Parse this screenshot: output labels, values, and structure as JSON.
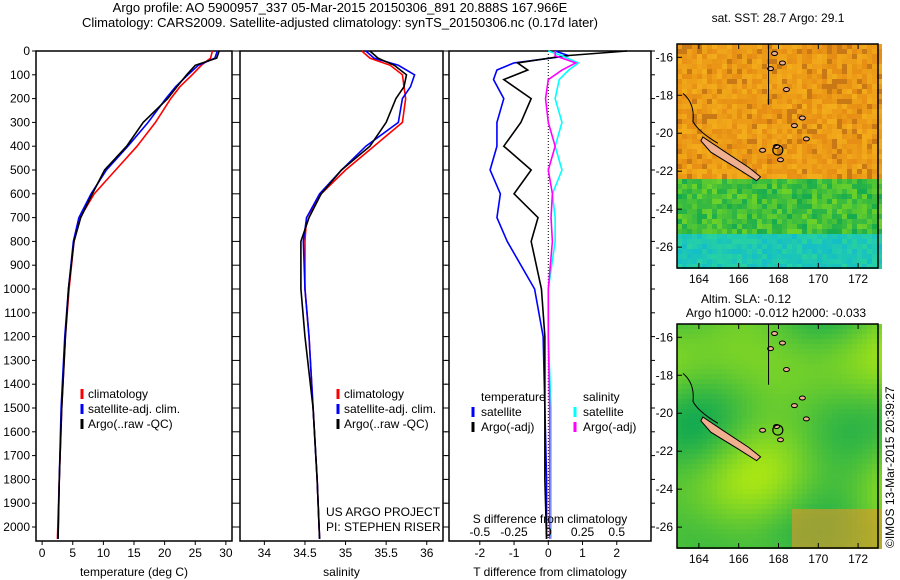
{
  "header": {
    "line1": "Argo profile: AO 5900957_337 05-Mar-2015 20150306_891 20.888S 167.966E",
    "line2": "Climatology: CARS2009. Satellite-adjusted climatology: synTS_20150306.nc (0.17d later)"
  },
  "credit": "©IMOS 13-Mar-2015 20:39:27",
  "project": {
    "line1": "US ARGO PROJECT",
    "line2": "PI: STEPHEN RISER"
  },
  "colors": {
    "climatology": "#ff0000",
    "satellite": "#0000ff",
    "argo": "#000000",
    "sal_satellite": "#00ffff",
    "sal_argo": "#ff00ff"
  },
  "chart_data": [
    {
      "type": "line",
      "xlabel": "temperature (deg C)",
      "ylabel": "depth",
      "xlim": [
        -1,
        31
      ],
      "ylim": [
        2060,
        0
      ],
      "xticks": [
        "0",
        "5",
        "10",
        "15",
        "20",
        "25",
        "30"
      ],
      "yticks": [
        "0",
        "100",
        "200",
        "300",
        "400",
        "500",
        "600",
        "700",
        "800",
        "900",
        "1000",
        "1100",
        "1200",
        "1300",
        "1400",
        "1500",
        "1600",
        "1700",
        "1800",
        "1900",
        "2000"
      ],
      "legend": [
        "climatology",
        "satellite-adj. clim.",
        "Argo(..raw -QC)"
      ],
      "depth": [
        0,
        30,
        60,
        100,
        150,
        200,
        300,
        400,
        500,
        600,
        700,
        800,
        1000,
        1200,
        1500,
        1800,
        2050
      ],
      "series": [
        {
          "name": "climatology",
          "values": [
            27.8,
            27.5,
            26,
            24.5,
            22.5,
            21,
            18.5,
            15.5,
            12,
            8.5,
            6.2,
            5.2,
            4.4,
            3.8,
            3.2,
            2.8,
            2.5
          ]
        },
        {
          "name": "satellite-adj. clim.",
          "values": [
            28.6,
            28.2,
            25.5,
            23.8,
            21.8,
            20.2,
            17.3,
            14,
            10.5,
            8,
            6,
            5.1,
            4.3,
            3.7,
            3.1,
            2.8,
            2.6
          ]
        },
        {
          "name": "Argo(..raw -QC)",
          "values": [
            28.9,
            28.5,
            25,
            23.6,
            22,
            20.5,
            16.5,
            13.8,
            10.2,
            8.2,
            6.3,
            5.2,
            4.3,
            3.8,
            3.2,
            2.8,
            2.6
          ]
        }
      ]
    },
    {
      "type": "line",
      "xlabel": "salinity",
      "xlim": [
        33.7,
        36.2
      ],
      "ylim": [
        2060,
        0
      ],
      "xticks": [
        "34",
        "34.5",
        "35",
        "35.5",
        "36"
      ],
      "legend": [
        "climatology",
        "satellite-adj. clim.",
        "Argo(..raw -QC)"
      ],
      "depth": [
        0,
        30,
        60,
        100,
        150,
        200,
        300,
        400,
        500,
        600,
        700,
        800,
        1000,
        1200,
        1500,
        1800,
        2050
      ],
      "series": [
        {
          "name": "climatology",
          "values": [
            35.2,
            35.3,
            35.55,
            35.7,
            35.72,
            35.74,
            35.7,
            35.35,
            35.0,
            34.7,
            34.52,
            34.5,
            34.5,
            34.55,
            34.6,
            34.65,
            34.68
          ]
        },
        {
          "name": "satellite-adj. clim.",
          "values": [
            35.25,
            35.35,
            35.65,
            35.85,
            35.8,
            35.7,
            35.65,
            35.25,
            34.95,
            34.68,
            34.52,
            34.48,
            34.5,
            34.55,
            34.6,
            34.65,
            34.68
          ]
        },
        {
          "name": "Argo(..raw -QC)",
          "values": [
            35.3,
            35.4,
            35.6,
            35.75,
            35.72,
            35.62,
            35.5,
            35.3,
            34.95,
            34.7,
            34.55,
            34.45,
            34.45,
            34.5,
            34.6,
            34.65,
            34.68
          ]
        }
      ]
    },
    {
      "type": "line",
      "xlabel": "T difference from climatology",
      "x2label": "S difference from climatology",
      "xlim": [
        -2.9,
        3.0
      ],
      "x2lim": [
        -0.725,
        0.75
      ],
      "ylim": [
        2060,
        0
      ],
      "xticks": [
        "-2",
        "-1",
        "0",
        "1",
        "2"
      ],
      "x2ticks": [
        "-0.5",
        "-0.25",
        "0",
        "0.25",
        "0.5"
      ],
      "legend_titles": [
        "temperature",
        "salinity"
      ],
      "legend": [
        "satellite",
        "Argo(-adj)",
        "satellite",
        "Argo(-adj)"
      ],
      "depth": [
        0,
        20,
        50,
        80,
        120,
        200,
        300,
        400,
        500,
        600,
        700,
        800,
        1000,
        1200,
        1500,
        1800,
        2050
      ],
      "series": [
        {
          "name": "T satellite",
          "axis": "T",
          "values": [
            0.2,
            0.6,
            -1.0,
            -1.5,
            -1.6,
            -1.3,
            -1.5,
            -1.5,
            -1.7,
            -1.4,
            -1.5,
            -1.2,
            -0.4,
            -0.15,
            -0.1,
            -0.05,
            -0.05
          ]
        },
        {
          "name": "T Argo(-adj)",
          "axis": "T",
          "values": [
            2.3,
            0.5,
            -0.9,
            -0.6,
            -1.3,
            -0.5,
            -0.8,
            -1.3,
            -0.5,
            -1.0,
            -0.3,
            -0.5,
            -0.2,
            -0.1,
            -0.1,
            -0.1,
            -0.05
          ]
        },
        {
          "name": "S satellite",
          "axis": "S",
          "values": [
            0.0,
            0.1,
            0.22,
            0.15,
            0.08,
            0.05,
            0.1,
            0.05,
            0.1,
            0.03,
            0.05,
            0.05,
            0.0,
            0.0,
            0.02,
            0.02,
            0.02
          ]
        },
        {
          "name": "S Argo(-adj)",
          "axis": "S",
          "values": [
            0.05,
            0.05,
            0.2,
            0.1,
            0.0,
            -0.02,
            0.0,
            0.05,
            0.0,
            0.03,
            0.02,
            0.03,
            0.0,
            0.0,
            0.01,
            0.01,
            0.01
          ]
        }
      ]
    },
    {
      "type": "heatmap",
      "title": "sat. SST: 28.7 Argo: 29.1",
      "lat_ticks": [
        "-16",
        "-18",
        "-20",
        "-22",
        "-24",
        "-26"
      ],
      "lon_ticks": [
        "164",
        "166",
        "168",
        "170",
        "172"
      ],
      "profile_location": {
        "lat": -20.888,
        "lon": 167.966
      }
    },
    {
      "type": "heatmap",
      "title1": "Altim. SLA: -0.12",
      "title2": "Argo h1000: -0.012 h2000: -0.033",
      "lat_ticks": [
        "-16",
        "-18",
        "-20",
        "-22",
        "-24",
        "-26"
      ],
      "lon_ticks": [
        "164",
        "166",
        "168",
        "170",
        "172"
      ],
      "profile_location": {
        "lat": -20.888,
        "lon": 167.966
      }
    }
  ]
}
